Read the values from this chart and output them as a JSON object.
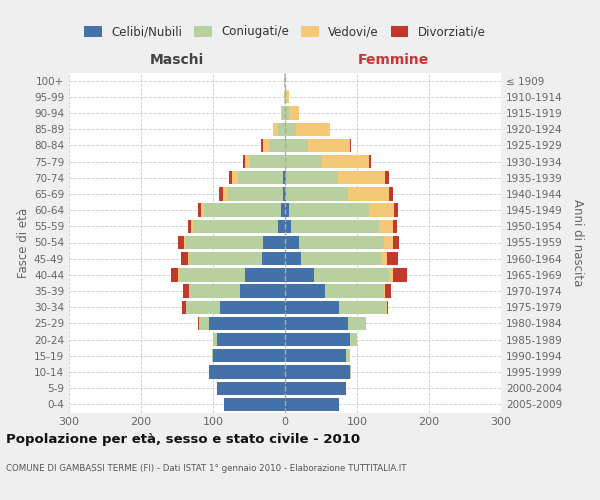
{
  "age_groups": [
    "0-4",
    "5-9",
    "10-14",
    "15-19",
    "20-24",
    "25-29",
    "30-34",
    "35-39",
    "40-44",
    "45-49",
    "50-54",
    "55-59",
    "60-64",
    "65-69",
    "70-74",
    "75-79",
    "80-84",
    "85-89",
    "90-94",
    "95-99",
    "100+"
  ],
  "birth_years": [
    "2005-2009",
    "2000-2004",
    "1995-1999",
    "1990-1994",
    "1985-1989",
    "1980-1984",
    "1975-1979",
    "1970-1974",
    "1965-1969",
    "1960-1964",
    "1955-1959",
    "1950-1954",
    "1945-1949",
    "1940-1944",
    "1935-1939",
    "1930-1934",
    "1925-1929",
    "1920-1924",
    "1915-1919",
    "1910-1914",
    "≤ 1909"
  ],
  "maschi": {
    "celibi": [
      85,
      95,
      105,
      100,
      95,
      105,
      90,
      62,
      55,
      32,
      30,
      10,
      5,
      3,
      3,
      0,
      0,
      0,
      0,
      0,
      0
    ],
    "coniugati": [
      0,
      0,
      1,
      2,
      5,
      15,
      48,
      72,
      92,
      102,
      108,
      118,
      108,
      78,
      62,
      48,
      22,
      10,
      4,
      1,
      1
    ],
    "vedovi": [
      0,
      0,
      0,
      0,
      0,
      0,
      0,
      0,
      1,
      1,
      2,
      2,
      3,
      5,
      8,
      8,
      8,
      6,
      2,
      0,
      0
    ],
    "divorziati": [
      0,
      0,
      0,
      0,
      0,
      1,
      5,
      8,
      10,
      10,
      8,
      5,
      5,
      5,
      5,
      2,
      3,
      0,
      0,
      0,
      0
    ]
  },
  "femmine": {
    "nubili": [
      75,
      85,
      90,
      85,
      90,
      88,
      75,
      55,
      40,
      22,
      20,
      8,
      5,
      2,
      2,
      0,
      0,
      0,
      0,
      0,
      0
    ],
    "coniugate": [
      0,
      0,
      2,
      5,
      10,
      25,
      65,
      82,
      105,
      112,
      118,
      122,
      112,
      85,
      72,
      52,
      32,
      15,
      5,
      2,
      0
    ],
    "vedove": [
      0,
      0,
      0,
      0,
      0,
      0,
      1,
      2,
      5,
      8,
      12,
      20,
      35,
      58,
      65,
      65,
      58,
      48,
      15,
      3,
      0
    ],
    "divorziate": [
      0,
      0,
      0,
      0,
      0,
      0,
      2,
      8,
      20,
      15,
      8,
      5,
      5,
      5,
      5,
      2,
      2,
      0,
      0,
      0,
      0
    ]
  },
  "colors": {
    "celibi": "#4472a8",
    "coniugati": "#b8cfa0",
    "vedovi": "#f5c878",
    "divorziati": "#c0392b"
  },
  "xlim": 300,
  "title": "Popolazione per età, sesso e stato civile - 2010",
  "subtitle": "COMUNE DI GAMBASSI TERME (FI) - Dati ISTAT 1° gennaio 2010 - Elaborazione TUTTITALIA.IT",
  "ylabel_left": "Fasce di età",
  "ylabel_right": "Anni di nascita",
  "xlabel_left": "Maschi",
  "xlabel_right": "Femmine",
  "bg_color": "#efefef",
  "plot_bg_color": "#ffffff"
}
